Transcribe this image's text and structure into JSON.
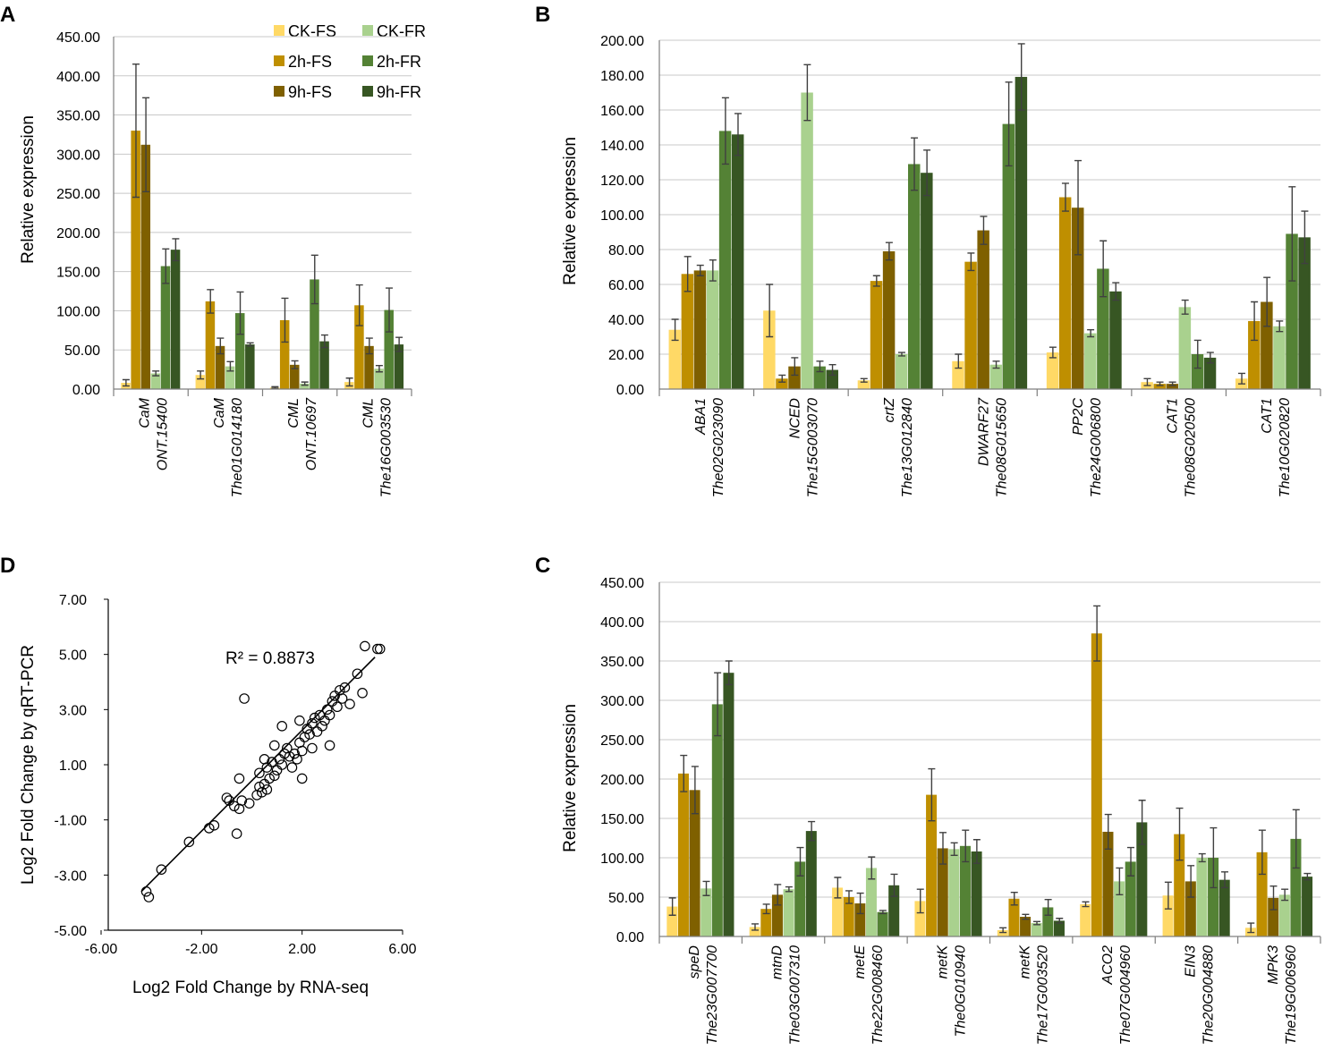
{
  "series_meta": [
    {
      "name": "CK-FS",
      "color": "#FFD966"
    },
    {
      "name": "2h-FS",
      "color": "#BF8F00"
    },
    {
      "name": "9h-FS",
      "color": "#7F6000"
    },
    {
      "name": "CK-FR",
      "color": "#A9D18E"
    },
    {
      "name": "2h-FR",
      "color": "#548235"
    },
    {
      "name": "9h-FR",
      "color": "#375623"
    }
  ],
  "chart_data": [
    {
      "panel": "A",
      "type": "bar",
      "ylabel": "Relative expression",
      "ylim": [
        0,
        450
      ],
      "yticks": [
        "0.00",
        "50.00",
        "100.00",
        "150.00",
        "200.00",
        "250.00",
        "300.00",
        "350.00",
        "400.00",
        "450.00"
      ],
      "categories": [
        {
          "gene": "CaM",
          "id": "ONT.15400"
        },
        {
          "gene": "CaM",
          "id": "The01G014180"
        },
        {
          "gene": "CML",
          "id": "ONT.10697"
        },
        {
          "gene": "CML",
          "id": "The16G003530"
        }
      ],
      "series": [
        {
          "name": "CK-FS",
          "values": [
            8,
            18,
            2,
            9
          ],
          "errors": [
            4,
            5,
            1,
            5
          ]
        },
        {
          "name": "2h-FS",
          "values": [
            330,
            112,
            88,
            107
          ],
          "errors": [
            85,
            15,
            28,
            26
          ]
        },
        {
          "name": "9h-FS",
          "values": [
            312,
            55,
            31,
            55
          ],
          "errors": [
            60,
            10,
            5,
            10
          ]
        },
        {
          "name": "CK-FR",
          "values": [
            20,
            29,
            7,
            26
          ],
          "errors": [
            3,
            6,
            2,
            4
          ]
        },
        {
          "name": "2h-FR",
          "values": [
            157,
            97,
            140,
            101
          ],
          "errors": [
            22,
            27,
            31,
            28
          ]
        },
        {
          "name": "9h-FR",
          "values": [
            178,
            57,
            61,
            57
          ],
          "errors": [
            14,
            2,
            8,
            9
          ]
        }
      ],
      "legend": {
        "placement": "top-right",
        "columns": [
          [
            "CK-FS",
            "2h-FS",
            "9h-FS"
          ],
          [
            "CK-FR",
            "2h-FR",
            "9h-FR"
          ]
        ]
      }
    },
    {
      "panel": "B",
      "type": "bar",
      "ylabel": "Relative expression",
      "ylim": [
        0,
        200
      ],
      "yticks": [
        "0.00",
        "20.00",
        "40.00",
        "60.00",
        "80.00",
        "100.00",
        "120.00",
        "140.00",
        "160.00",
        "180.00",
        "200.00"
      ],
      "categories": [
        {
          "gene": "ABA1",
          "id": "The02G023090"
        },
        {
          "gene": "NCED",
          "id": "The15G003070"
        },
        {
          "gene": "crtZ",
          "id": "The13G012840"
        },
        {
          "gene": "DWARF27",
          "id": "The08G015650"
        },
        {
          "gene": "PP2C",
          "id": "The24G006800"
        },
        {
          "gene": "CAT1",
          "id": "The08G020500"
        },
        {
          "gene": "CAT1",
          "id": "The10G020820"
        }
      ],
      "series": [
        {
          "name": "CK-FS",
          "values": [
            34,
            45,
            5,
            16,
            21,
            4,
            6
          ],
          "errors": [
            6,
            15,
            1,
            4,
            3,
            2,
            3
          ]
        },
        {
          "name": "2h-FS",
          "values": [
            66,
            6,
            62,
            73,
            110,
            3,
            39
          ],
          "errors": [
            10,
            2,
            3,
            5,
            8,
            1,
            11
          ]
        },
        {
          "name": "9h-FS",
          "values": [
            68,
            13,
            79,
            91,
            104,
            3,
            50
          ],
          "errors": [
            3,
            5,
            5,
            8,
            27,
            1,
            14
          ]
        },
        {
          "name": "CK-FR",
          "values": [
            68,
            170,
            20,
            14,
            32,
            47,
            36
          ],
          "errors": [
            6,
            16,
            1,
            2,
            2,
            4,
            3
          ]
        },
        {
          "name": "2h-FR",
          "values": [
            148,
            13,
            129,
            152,
            69,
            20,
            89
          ],
          "errors": [
            19,
            3,
            15,
            24,
            16,
            8,
            27
          ]
        },
        {
          "name": "9h-FR",
          "values": [
            146,
            11,
            124,
            179,
            56,
            18,
            87
          ],
          "errors": [
            12,
            3,
            13,
            19,
            5,
            3,
            15
          ]
        }
      ]
    },
    {
      "panel": "C",
      "type": "bar",
      "ylabel": "Relative expression",
      "ylim": [
        0,
        450
      ],
      "yticks": [
        "0.00",
        "50.00",
        "100.00",
        "150.00",
        "200.00",
        "250.00",
        "300.00",
        "350.00",
        "400.00",
        "450.00"
      ],
      "categories": [
        {
          "gene": "speD",
          "id": "The23G007700"
        },
        {
          "gene": "mtnD",
          "id": "The03G007310"
        },
        {
          "gene": "metE",
          "id": "The22G008460"
        },
        {
          "gene": "metK",
          "id": "The0G010940"
        },
        {
          "gene": "metK",
          "id": "The17G003520"
        },
        {
          "gene": "ACO2",
          "id": "The07G004960"
        },
        {
          "gene": "EIN3",
          "id": "The20G004880"
        },
        {
          "gene": "MPK3",
          "id": "The19G006960"
        }
      ],
      "series": [
        {
          "name": "CK-FS",
          "values": [
            38,
            12,
            62,
            45,
            8,
            41,
            52,
            11
          ],
          "errors": [
            11,
            4,
            13,
            15,
            3,
            3,
            17,
            6
          ]
        },
        {
          "name": "2h-FS",
          "values": [
            207,
            35,
            50,
            180,
            48,
            385,
            130,
            107
          ],
          "errors": [
            23,
            6,
            8,
            33,
            8,
            35,
            33,
            28
          ]
        },
        {
          "name": "9h-FS",
          "values": [
            186,
            53,
            42,
            112,
            25,
            133,
            70,
            49
          ],
          "errors": [
            30,
            13,
            13,
            20,
            3,
            22,
            20,
            15
          ]
        },
        {
          "name": "CK-FR",
          "values": [
            61,
            60,
            87,
            111,
            17,
            70,
            100,
            53
          ],
          "errors": [
            9,
            3,
            14,
            8,
            2,
            17,
            5,
            7
          ]
        },
        {
          "name": "2h-FR",
          "values": [
            295,
            95,
            31,
            115,
            37,
            95,
            100,
            124
          ],
          "errors": [
            40,
            18,
            2,
            20,
            10,
            18,
            38,
            37
          ]
        },
        {
          "name": "9h-FR",
          "values": [
            335,
            134,
            65,
            108,
            20,
            145,
            72,
            76
          ],
          "errors": [
            15,
            12,
            14,
            15,
            3,
            28,
            10,
            4
          ]
        }
      ]
    },
    {
      "panel": "D",
      "type": "scatter",
      "xlabel": "Log2 Fold Change  by RNA-seq",
      "ylabel": "Log2 Fold Change  by qRT-PCR",
      "xlim": [
        -6,
        6
      ],
      "ylim": [
        -5,
        7
      ],
      "xticks": [
        "-6.00",
        "-2.00",
        "2.00",
        "6.00"
      ],
      "yticks": [
        "-5.00",
        "-3.00",
        "-1.00",
        "1.00",
        "3.00",
        "5.00",
        "7.00"
      ],
      "annotation": "R² = 0.8873",
      "trendline": {
        "x": [
          -4.4,
          4.9
        ],
        "y": [
          -3.6,
          4.9
        ]
      },
      "points": [
        [
          -4.2,
          -3.6
        ],
        [
          -4.1,
          -3.8
        ],
        [
          -3.6,
          -2.8
        ],
        [
          -2.5,
          -1.8
        ],
        [
          -1.7,
          -1.3
        ],
        [
          -1.5,
          -1.2
        ],
        [
          -1.0,
          -0.2
        ],
        [
          -0.9,
          -0.3
        ],
        [
          -0.7,
          -0.5
        ],
        [
          -0.5,
          -0.6
        ],
        [
          -0.4,
          -0.3
        ],
        [
          -0.5,
          0.5
        ],
        [
          -0.6,
          -1.5
        ],
        [
          -0.1,
          -0.4
        ],
        [
          0.2,
          -0.1
        ],
        [
          0.4,
          0.0
        ],
        [
          0.5,
          0.3
        ],
        [
          0.3,
          0.7
        ],
        [
          0.5,
          1.2
        ],
        [
          0.6,
          0.9
        ],
        [
          0.7,
          0.5
        ],
        [
          0.8,
          1.1
        ],
        [
          0.9,
          0.6
        ],
        [
          1.0,
          0.8
        ],
        [
          1.1,
          1.2
        ],
        [
          1.2,
          1.0
        ],
        [
          1.3,
          1.4
        ],
        [
          1.4,
          1.6
        ],
        [
          1.5,
          1.3
        ],
        [
          1.6,
          0.9
        ],
        [
          1.7,
          1.4
        ],
        [
          1.8,
          1.2
        ],
        [
          1.9,
          1.8
        ],
        [
          2.0,
          1.5
        ],
        [
          2.1,
          2.0
        ],
        [
          2.2,
          2.3
        ],
        [
          2.3,
          2.1
        ],
        [
          2.4,
          2.5
        ],
        [
          2.5,
          2.7
        ],
        [
          2.6,
          2.2
        ],
        [
          2.7,
          2.8
        ],
        [
          2.8,
          2.4
        ],
        [
          2.9,
          2.6
        ],
        [
          3.0,
          3.0
        ],
        [
          3.1,
          2.8
        ],
        [
          3.2,
          3.3
        ],
        [
          3.3,
          3.5
        ],
        [
          3.4,
          3.1
        ],
        [
          3.5,
          3.7
        ],
        [
          3.6,
          3.4
        ],
        [
          3.7,
          3.8
        ],
        [
          3.9,
          3.2
        ],
        [
          4.2,
          4.3
        ],
        [
          4.4,
          3.6
        ],
        [
          4.5,
          5.3
        ],
        [
          5.0,
          5.2
        ],
        [
          5.1,
          5.2
        ],
        [
          -0.3,
          3.4
        ],
        [
          2.0,
          0.5
        ],
        [
          3.1,
          1.7
        ],
        [
          2.4,
          1.6
        ],
        [
          1.2,
          2.4
        ],
        [
          0.9,
          1.7
        ],
        [
          0.3,
          0.2
        ],
        [
          0.6,
          0.1
        ],
        [
          1.9,
          2.6
        ]
      ]
    }
  ]
}
